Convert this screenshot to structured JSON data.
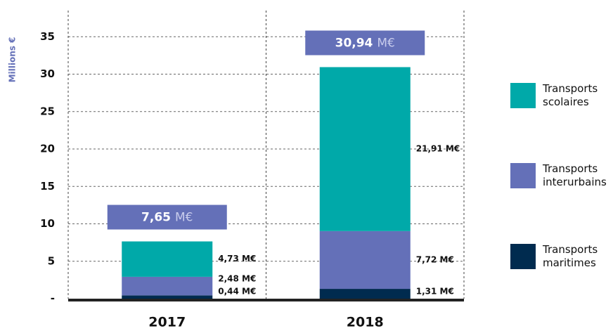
{
  "chart_data": {
    "type": "stacked_bar",
    "y_label": "Millions €",
    "categories": [
      "2017",
      "2018"
    ],
    "series": [
      {
        "name": "Transports maritimes",
        "color": "#002b4f",
        "values": [
          0.44,
          1.31
        ],
        "value_labels": [
          "0,44 M€",
          "1,31 M€"
        ]
      },
      {
        "name": "Transports interurbains",
        "color": "#6470b8",
        "values": [
          2.48,
          7.72
        ],
        "value_labels": [
          "2,48 M€",
          "7,72 M€"
        ]
      },
      {
        "name": "Transports scolaires",
        "color": "#00a9a9",
        "values": [
          4.73,
          21.91
        ],
        "value_labels": [
          "4,73 M€",
          "21,91 M€"
        ]
      }
    ],
    "totals": [
      7.65,
      30.94
    ],
    "total_labels": [
      {
        "number": "7,65",
        "unit": "M€"
      },
      {
        "number": "30,94",
        "unit": "M€"
      }
    ],
    "total_color": "#6470b8",
    "ylim": [
      0,
      38.5
    ],
    "yticks": [
      {
        "value": 0,
        "label": "-"
      },
      5,
      10,
      15,
      20,
      25,
      30,
      35
    ],
    "grid": true,
    "legend": "right"
  }
}
